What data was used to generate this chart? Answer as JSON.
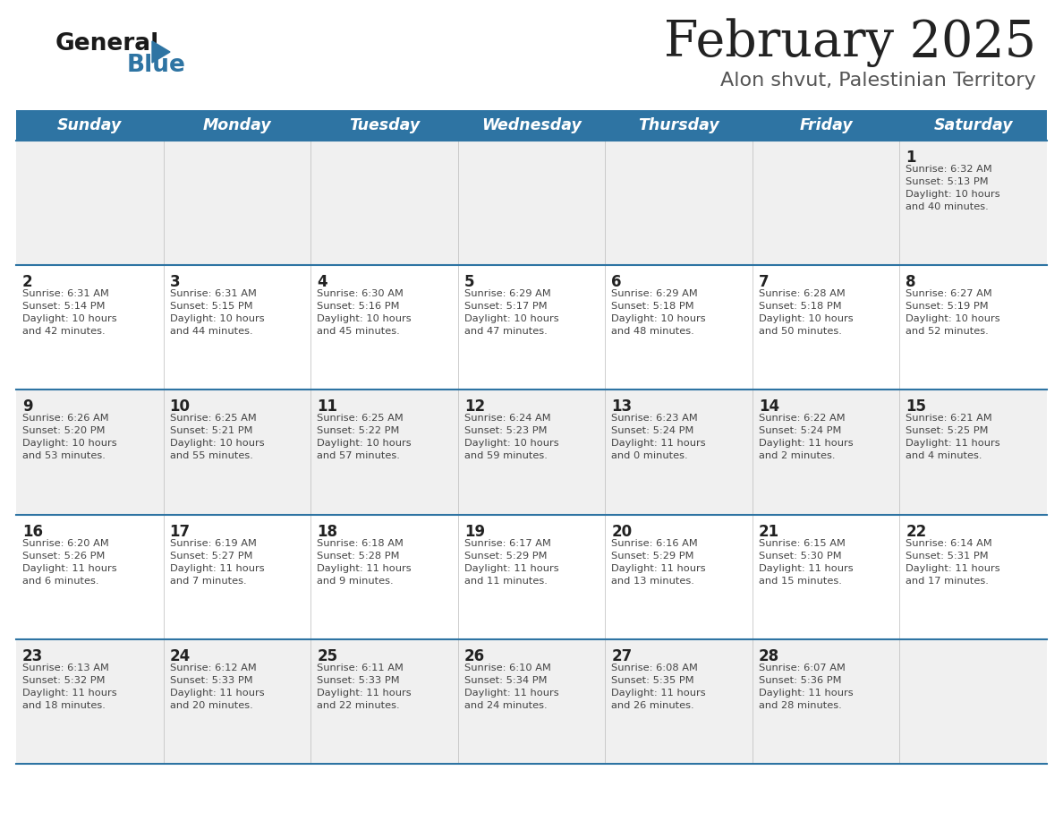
{
  "title": "February 2025",
  "subtitle": "Alon shvut, Palestinian Territory",
  "header_bg": "#2E74A3",
  "header_text_color": "#FFFFFF",
  "day_names": [
    "Sunday",
    "Monday",
    "Tuesday",
    "Wednesday",
    "Thursday",
    "Friday",
    "Saturday"
  ],
  "row_bg_odd": "#F0F0F0",
  "row_bg_even": "#FFFFFF",
  "cell_text_color": "#444444",
  "day_num_color": "#222222",
  "divider_color": "#2E74A3",
  "title_color": "#222222",
  "subtitle_color": "#555555",
  "logo_general_color": "#1a1a1a",
  "logo_blue_color": "#2E74A3",
  "calendar": [
    [
      {
        "day": "",
        "sunrise": "",
        "sunset": "",
        "daylight": ""
      },
      {
        "day": "",
        "sunrise": "",
        "sunset": "",
        "daylight": ""
      },
      {
        "day": "",
        "sunrise": "",
        "sunset": "",
        "daylight": ""
      },
      {
        "day": "",
        "sunrise": "",
        "sunset": "",
        "daylight": ""
      },
      {
        "day": "",
        "sunrise": "",
        "sunset": "",
        "daylight": ""
      },
      {
        "day": "",
        "sunrise": "",
        "sunset": "",
        "daylight": ""
      },
      {
        "day": "1",
        "sunrise": "Sunrise: 6:32 AM",
        "sunset": "Sunset: 5:13 PM",
        "daylight": "Daylight: 10 hours\nand 40 minutes."
      }
    ],
    [
      {
        "day": "2",
        "sunrise": "Sunrise: 6:31 AM",
        "sunset": "Sunset: 5:14 PM",
        "daylight": "Daylight: 10 hours\nand 42 minutes."
      },
      {
        "day": "3",
        "sunrise": "Sunrise: 6:31 AM",
        "sunset": "Sunset: 5:15 PM",
        "daylight": "Daylight: 10 hours\nand 44 minutes."
      },
      {
        "day": "4",
        "sunrise": "Sunrise: 6:30 AM",
        "sunset": "Sunset: 5:16 PM",
        "daylight": "Daylight: 10 hours\nand 45 minutes."
      },
      {
        "day": "5",
        "sunrise": "Sunrise: 6:29 AM",
        "sunset": "Sunset: 5:17 PM",
        "daylight": "Daylight: 10 hours\nand 47 minutes."
      },
      {
        "day": "6",
        "sunrise": "Sunrise: 6:29 AM",
        "sunset": "Sunset: 5:18 PM",
        "daylight": "Daylight: 10 hours\nand 48 minutes."
      },
      {
        "day": "7",
        "sunrise": "Sunrise: 6:28 AM",
        "sunset": "Sunset: 5:18 PM",
        "daylight": "Daylight: 10 hours\nand 50 minutes."
      },
      {
        "day": "8",
        "sunrise": "Sunrise: 6:27 AM",
        "sunset": "Sunset: 5:19 PM",
        "daylight": "Daylight: 10 hours\nand 52 minutes."
      }
    ],
    [
      {
        "day": "9",
        "sunrise": "Sunrise: 6:26 AM",
        "sunset": "Sunset: 5:20 PM",
        "daylight": "Daylight: 10 hours\nand 53 minutes."
      },
      {
        "day": "10",
        "sunrise": "Sunrise: 6:25 AM",
        "sunset": "Sunset: 5:21 PM",
        "daylight": "Daylight: 10 hours\nand 55 minutes."
      },
      {
        "day": "11",
        "sunrise": "Sunrise: 6:25 AM",
        "sunset": "Sunset: 5:22 PM",
        "daylight": "Daylight: 10 hours\nand 57 minutes."
      },
      {
        "day": "12",
        "sunrise": "Sunrise: 6:24 AM",
        "sunset": "Sunset: 5:23 PM",
        "daylight": "Daylight: 10 hours\nand 59 minutes."
      },
      {
        "day": "13",
        "sunrise": "Sunrise: 6:23 AM",
        "sunset": "Sunset: 5:24 PM",
        "daylight": "Daylight: 11 hours\nand 0 minutes."
      },
      {
        "day": "14",
        "sunrise": "Sunrise: 6:22 AM",
        "sunset": "Sunset: 5:24 PM",
        "daylight": "Daylight: 11 hours\nand 2 minutes."
      },
      {
        "day": "15",
        "sunrise": "Sunrise: 6:21 AM",
        "sunset": "Sunset: 5:25 PM",
        "daylight": "Daylight: 11 hours\nand 4 minutes."
      }
    ],
    [
      {
        "day": "16",
        "sunrise": "Sunrise: 6:20 AM",
        "sunset": "Sunset: 5:26 PM",
        "daylight": "Daylight: 11 hours\nand 6 minutes."
      },
      {
        "day": "17",
        "sunrise": "Sunrise: 6:19 AM",
        "sunset": "Sunset: 5:27 PM",
        "daylight": "Daylight: 11 hours\nand 7 minutes."
      },
      {
        "day": "18",
        "sunrise": "Sunrise: 6:18 AM",
        "sunset": "Sunset: 5:28 PM",
        "daylight": "Daylight: 11 hours\nand 9 minutes."
      },
      {
        "day": "19",
        "sunrise": "Sunrise: 6:17 AM",
        "sunset": "Sunset: 5:29 PM",
        "daylight": "Daylight: 11 hours\nand 11 minutes."
      },
      {
        "day": "20",
        "sunrise": "Sunrise: 6:16 AM",
        "sunset": "Sunset: 5:29 PM",
        "daylight": "Daylight: 11 hours\nand 13 minutes."
      },
      {
        "day": "21",
        "sunrise": "Sunrise: 6:15 AM",
        "sunset": "Sunset: 5:30 PM",
        "daylight": "Daylight: 11 hours\nand 15 minutes."
      },
      {
        "day": "22",
        "sunrise": "Sunrise: 6:14 AM",
        "sunset": "Sunset: 5:31 PM",
        "daylight": "Daylight: 11 hours\nand 17 minutes."
      }
    ],
    [
      {
        "day": "23",
        "sunrise": "Sunrise: 6:13 AM",
        "sunset": "Sunset: 5:32 PM",
        "daylight": "Daylight: 11 hours\nand 18 minutes."
      },
      {
        "day": "24",
        "sunrise": "Sunrise: 6:12 AM",
        "sunset": "Sunset: 5:33 PM",
        "daylight": "Daylight: 11 hours\nand 20 minutes."
      },
      {
        "day": "25",
        "sunrise": "Sunrise: 6:11 AM",
        "sunset": "Sunset: 5:33 PM",
        "daylight": "Daylight: 11 hours\nand 22 minutes."
      },
      {
        "day": "26",
        "sunrise": "Sunrise: 6:10 AM",
        "sunset": "Sunset: 5:34 PM",
        "daylight": "Daylight: 11 hours\nand 24 minutes."
      },
      {
        "day": "27",
        "sunrise": "Sunrise: 6:08 AM",
        "sunset": "Sunset: 5:35 PM",
        "daylight": "Daylight: 11 hours\nand 26 minutes."
      },
      {
        "day": "28",
        "sunrise": "Sunrise: 6:07 AM",
        "sunset": "Sunset: 5:36 PM",
        "daylight": "Daylight: 11 hours\nand 28 minutes."
      },
      {
        "day": "",
        "sunrise": "",
        "sunset": "",
        "daylight": ""
      }
    ]
  ]
}
